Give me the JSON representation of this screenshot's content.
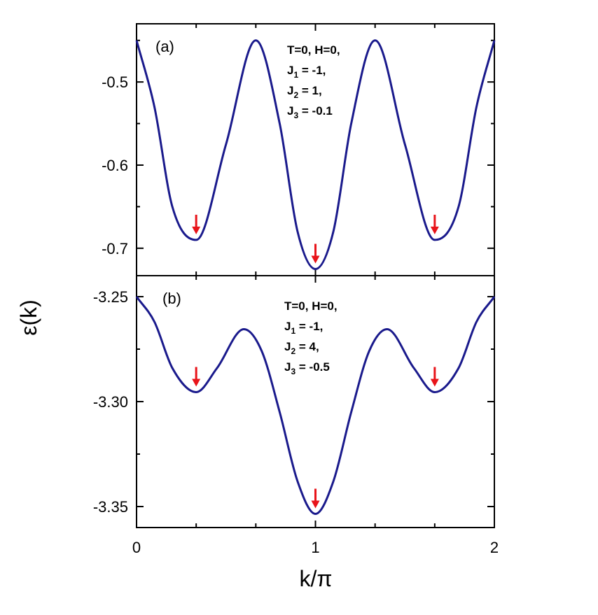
{
  "chart_data": {
    "type": "line",
    "xlabel": "k/π",
    "ylabel": "ε(k)",
    "xlim": [
      0,
      2
    ],
    "xticks": [
      0,
      1,
      2
    ],
    "xtick_labels": [
      "0",
      "1",
      "2"
    ],
    "line_color": "#1a1a8c",
    "arrow_color": "#e8141a",
    "panels": [
      {
        "label": "(a)",
        "ylim": [
          -0.733,
          -0.43
        ],
        "yticks": [
          -0.5,
          -0.6,
          -0.7
        ],
        "ytick_labels": [
          "-0.5",
          "-0.6",
          "-0.7"
        ],
        "annotation": [
          "T=0, H=0,",
          "J|1| = -1,",
          "J|2| = 1,",
          "J|3| = -0.1"
        ],
        "x": [
          0.0,
          0.1,
          0.2,
          0.3333,
          0.5,
          0.6667,
          0.8,
          0.9,
          1.0,
          1.1,
          1.2,
          1.3333,
          1.5,
          1.6667,
          1.8,
          1.9,
          2.0
        ],
        "y": [
          -0.45,
          -0.53,
          -0.65,
          -0.69,
          -0.575,
          -0.45,
          -0.55,
          -0.68,
          -0.725,
          -0.68,
          -0.55,
          -0.45,
          -0.575,
          -0.69,
          -0.65,
          -0.53,
          -0.45
        ],
        "minima_x": [
          0.3333,
          1.0,
          1.6667
        ],
        "minima_y": [
          -0.69,
          -0.725,
          -0.69
        ]
      },
      {
        "label": "(b)",
        "ylim": [
          -3.36,
          -3.24
        ],
        "yticks": [
          -3.25,
          -3.3,
          -3.35
        ],
        "ytick_labels": [
          "-3.25",
          "-3.30",
          "-3.35"
        ],
        "annotation": [
          "T=0, H=0,",
          "J|1| = -1,",
          "J|2| = 4,",
          "J|3| = -0.5"
        ],
        "x": [
          0.0,
          0.1,
          0.2,
          0.3333,
          0.45,
          0.6,
          0.7,
          0.8,
          0.9,
          1.0,
          1.1,
          1.2,
          1.3,
          1.4,
          1.55,
          1.6667,
          1.8,
          1.9,
          2.0
        ],
        "y": [
          -3.25,
          -3.262,
          -3.284,
          -3.2955,
          -3.284,
          -3.2655,
          -3.276,
          -3.305,
          -3.338,
          -3.3535,
          -3.338,
          -3.305,
          -3.276,
          -3.2655,
          -3.284,
          -3.2955,
          -3.284,
          -3.262,
          -3.25
        ],
        "minima_x": [
          0.3333,
          1.0,
          1.6667
        ],
        "minima_y": [
          -3.2955,
          -3.3535,
          -3.2955
        ]
      }
    ]
  }
}
